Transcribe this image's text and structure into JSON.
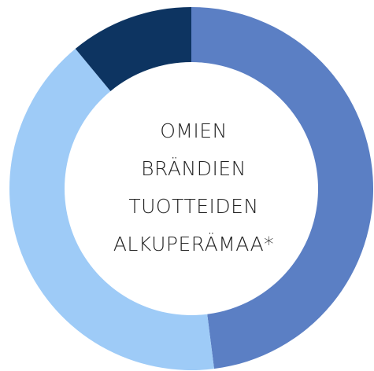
{
  "chart_data": {
    "type": "donut",
    "values": [
      48,
      41,
      11
    ],
    "colors": [
      "#5b7fc4",
      "#9ecbf7",
      "#0d3461"
    ],
    "center_label": [
      "OMIEN",
      "BRÄNDIEN",
      "TUOTTEIDEN",
      "ALKUPERÄMAA*"
    ]
  }
}
